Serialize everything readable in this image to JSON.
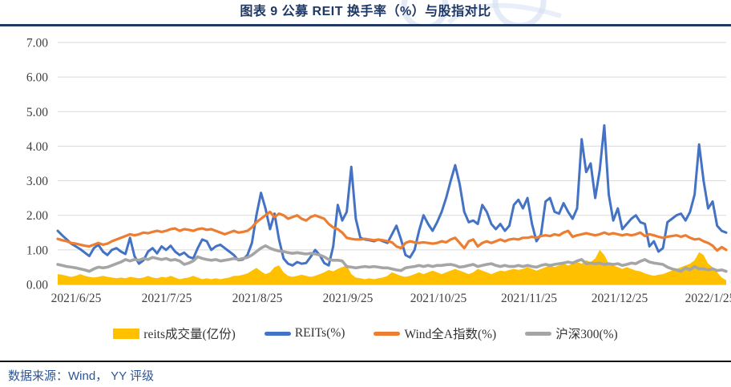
{
  "header": {
    "title": "图表 9 公募 REIT 换手率（%）与股指对比"
  },
  "footer": {
    "source": "数据来源：Wind， YY 评级"
  },
  "colors": {
    "title_navy": "#1F3864",
    "footer_blue": "#2E5596",
    "gridline": "#D9D9D9",
    "axis_line": "#BFBFBF",
    "series_volume": "#FFC000",
    "series_reits": "#4472C4",
    "series_wind_all_a": "#ED7D31",
    "series_hs300": "#A5A5A5"
  },
  "chart_data": {
    "type": "line",
    "title": "图表 9 公募 REIT 换手率（%）与股指对比",
    "xlabel": "",
    "ylabel": "",
    "ylim": [
      0,
      7
    ],
    "grid": true,
    "legend_position": "bottom",
    "y_tick_labels": [
      "0.00",
      "1.00",
      "2.00",
      "3.00",
      "4.00",
      "5.00",
      "6.00",
      "7.00"
    ],
    "x_tick_labels": [
      "2021/6/25",
      "2021/7/25",
      "2021/8/25",
      "2021/9/25",
      "2021/10/25",
      "2021/11/25",
      "2021/12/25",
      "2022/1/25"
    ],
    "series": [
      {
        "id": "reits-volume",
        "name": "reits成交量(亿份)",
        "type": "area",
        "color": "#FFC000",
        "values": [
          0.3,
          0.28,
          0.25,
          0.22,
          0.25,
          0.3,
          0.25,
          0.22,
          0.2,
          0.22,
          0.25,
          0.22,
          0.2,
          0.18,
          0.2,
          0.18,
          0.22,
          0.2,
          0.18,
          0.2,
          0.25,
          0.2,
          0.18,
          0.22,
          0.2,
          0.25,
          0.2,
          0.15,
          0.18,
          0.2,
          0.25,
          0.2,
          0.15,
          0.18,
          0.15,
          0.18,
          0.15,
          0.18,
          0.2,
          0.25,
          0.25,
          0.28,
          0.32,
          0.4,
          0.48,
          0.38,
          0.3,
          0.35,
          0.5,
          0.55,
          0.35,
          0.25,
          0.22,
          0.25,
          0.28,
          0.25,
          0.22,
          0.25,
          0.3,
          0.35,
          0.42,
          0.38,
          0.45,
          0.5,
          0.55,
          0.3,
          0.2,
          0.18,
          0.15,
          0.18,
          0.15,
          0.18,
          0.2,
          0.25,
          0.35,
          0.3,
          0.25,
          0.22,
          0.25,
          0.3,
          0.35,
          0.3,
          0.35,
          0.4,
          0.35,
          0.3,
          0.35,
          0.4,
          0.45,
          0.4,
          0.35,
          0.3,
          0.35,
          0.45,
          0.4,
          0.35,
          0.3,
          0.35,
          0.4,
          0.38,
          0.42,
          0.45,
          0.42,
          0.45,
          0.5,
          0.45,
          0.4,
          0.45,
          0.5,
          0.55,
          0.5,
          0.55,
          0.6,
          0.55,
          0.6,
          0.65,
          0.6,
          0.7,
          0.65,
          0.75,
          1.0,
          0.85,
          0.6,
          0.55,
          0.5,
          0.45,
          0.5,
          0.45,
          0.4,
          0.38,
          0.32,
          0.28,
          0.25,
          0.28,
          0.3,
          0.35,
          0.4,
          0.45,
          0.5,
          0.55,
          0.6,
          0.7,
          0.93,
          0.85,
          0.6,
          0.5,
          0.35,
          0.2,
          0.12
        ]
      },
      {
        "id": "reits",
        "name": "REITs(%)",
        "type": "line",
        "color": "#4472C4",
        "values": [
          1.55,
          1.42,
          1.3,
          1.18,
          1.1,
          1.02,
          0.92,
          0.82,
          1.05,
          1.15,
          0.95,
          0.85,
          1.0,
          1.05,
          0.95,
          0.88,
          1.35,
          0.82,
          0.6,
          0.7,
          0.95,
          1.05,
          0.9,
          1.1,
          1.0,
          1.12,
          0.95,
          0.85,
          0.92,
          0.8,
          0.75,
          1.05,
          1.3,
          1.25,
          1.0,
          1.1,
          1.15,
          1.05,
          0.95,
          0.85,
          0.7,
          0.72,
          0.85,
          1.2,
          2.0,
          2.65,
          2.2,
          1.6,
          2.05,
          1.3,
          0.75,
          0.6,
          0.55,
          0.65,
          0.6,
          0.62,
          0.8,
          1.0,
          0.85,
          0.62,
          0.55,
          1.1,
          2.3,
          1.85,
          2.1,
          3.4,
          1.9,
          1.35,
          1.3,
          1.28,
          1.25,
          1.3,
          1.25,
          1.2,
          1.45,
          1.7,
          1.3,
          0.85,
          0.78,
          1.0,
          1.55,
          2.0,
          1.75,
          1.55,
          1.8,
          2.1,
          2.5,
          3.0,
          3.45,
          2.9,
          2.1,
          1.8,
          1.85,
          1.75,
          2.3,
          2.1,
          1.75,
          1.6,
          1.75,
          1.55,
          1.7,
          2.3,
          2.45,
          2.2,
          2.5,
          1.75,
          1.25,
          1.45,
          2.4,
          2.5,
          2.1,
          2.05,
          2.35,
          2.1,
          1.9,
          2.2,
          4.2,
          3.25,
          3.5,
          2.5,
          3.3,
          4.6,
          2.6,
          1.85,
          2.2,
          1.6,
          1.75,
          1.9,
          2.0,
          1.8,
          1.75,
          1.1,
          1.25,
          0.95,
          1.05,
          1.8,
          1.9,
          2.0,
          2.05,
          1.85,
          2.1,
          2.6,
          4.05,
          3.0,
          2.2,
          2.4,
          1.7,
          1.55,
          1.5
        ]
      },
      {
        "id": "wind-all-a",
        "name": "Wind全A指数(%)",
        "type": "line",
        "color": "#ED7D31",
        "values": [
          1.32,
          1.28,
          1.25,
          1.2,
          1.18,
          1.15,
          1.12,
          1.1,
          1.15,
          1.2,
          1.15,
          1.18,
          1.25,
          1.3,
          1.35,
          1.4,
          1.45,
          1.42,
          1.45,
          1.5,
          1.48,
          1.52,
          1.55,
          1.52,
          1.55,
          1.6,
          1.62,
          1.55,
          1.6,
          1.58,
          1.55,
          1.6,
          1.62,
          1.58,
          1.6,
          1.55,
          1.5,
          1.45,
          1.5,
          1.55,
          1.5,
          1.52,
          1.55,
          1.65,
          1.8,
          1.9,
          2.0,
          2.1,
          1.95,
          2.05,
          2.0,
          1.9,
          1.95,
          2.0,
          1.9,
          1.85,
          1.95,
          2.0,
          1.95,
          1.9,
          1.75,
          1.65,
          1.6,
          1.5,
          1.35,
          1.32,
          1.3,
          1.3,
          1.32,
          1.3,
          1.28,
          1.3,
          1.28,
          1.25,
          1.22,
          1.1,
          1.05,
          1.2,
          1.25,
          1.22,
          1.2,
          1.22,
          1.2,
          1.18,
          1.2,
          1.25,
          1.22,
          1.3,
          1.35,
          1.2,
          1.05,
          1.25,
          1.3,
          1.1,
          1.2,
          1.25,
          1.2,
          1.25,
          1.3,
          1.25,
          1.3,
          1.32,
          1.3,
          1.35,
          1.35,
          1.38,
          1.35,
          1.4,
          1.42,
          1.4,
          1.45,
          1.42,
          1.5,
          1.55,
          1.38,
          1.42,
          1.45,
          1.48,
          1.45,
          1.42,
          1.45,
          1.5,
          1.45,
          1.48,
          1.45,
          1.42,
          1.45,
          1.42,
          1.45,
          1.5,
          1.4,
          1.45,
          1.42,
          1.38,
          1.35,
          1.38,
          1.4,
          1.42,
          1.38,
          1.42,
          1.35,
          1.3,
          1.32,
          1.25,
          1.2,
          1.12,
          0.98,
          1.08,
          1.0
        ]
      },
      {
        "id": "hs300",
        "name": "沪深300(%)",
        "type": "line",
        "color": "#A5A5A5",
        "values": [
          0.58,
          0.55,
          0.52,
          0.5,
          0.48,
          0.45,
          0.42,
          0.38,
          0.45,
          0.5,
          0.48,
          0.5,
          0.55,
          0.6,
          0.65,
          0.72,
          0.68,
          0.72,
          0.7,
          0.75,
          0.72,
          0.78,
          0.75,
          0.72,
          0.75,
          0.7,
          0.72,
          0.68,
          0.58,
          0.62,
          0.68,
          0.8,
          0.75,
          0.72,
          0.7,
          0.72,
          0.68,
          0.7,
          0.72,
          0.75,
          0.72,
          0.75,
          0.78,
          0.85,
          0.95,
          1.05,
          1.12,
          1.05,
          1.0,
          0.97,
          0.95,
          0.92,
          0.9,
          0.92,
          0.9,
          0.88,
          0.9,
          0.88,
          0.85,
          0.8,
          0.72,
          0.7,
          0.7,
          0.68,
          0.52,
          0.5,
          0.48,
          0.5,
          0.52,
          0.5,
          0.52,
          0.5,
          0.48,
          0.48,
          0.45,
          0.42,
          0.4,
          0.48,
          0.5,
          0.52,
          0.55,
          0.52,
          0.55,
          0.52,
          0.55,
          0.55,
          0.57,
          0.58,
          0.55,
          0.5,
          0.52,
          0.55,
          0.58,
          0.52,
          0.55,
          0.58,
          0.6,
          0.55,
          0.52,
          0.55,
          0.52,
          0.52,
          0.55,
          0.52,
          0.55,
          0.52,
          0.5,
          0.55,
          0.58,
          0.55,
          0.58,
          0.6,
          0.62,
          0.65,
          0.62,
          0.68,
          0.72,
          0.6,
          0.62,
          0.6,
          0.62,
          0.58,
          0.6,
          0.58,
          0.6,
          0.55,
          0.58,
          0.62,
          0.6,
          0.67,
          0.72,
          0.65,
          0.62,
          0.6,
          0.58,
          0.5,
          0.45,
          0.42,
          0.38,
          0.48,
          0.42,
          0.52,
          0.45,
          0.45,
          0.42,
          0.45,
          0.4,
          0.42,
          0.38
        ]
      }
    ]
  }
}
